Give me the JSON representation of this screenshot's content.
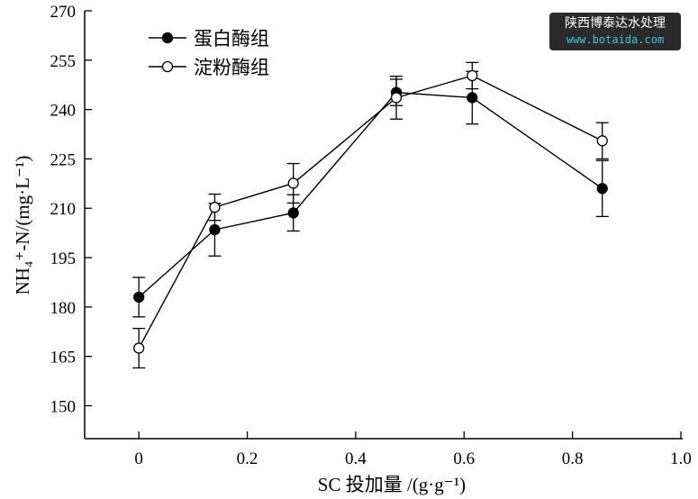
{
  "chart_data": {
    "type": "line",
    "xlabel": "SC 投加量 /(g·g⁻¹)",
    "ylabel": "NH₄⁺-N/(mg·L⁻¹)",
    "xlim": [
      -0.1,
      1.0
    ],
    "ylim": [
      140,
      270
    ],
    "xticks": [
      0,
      0.2,
      0.4,
      0.6,
      0.8,
      1.0
    ],
    "xtick_labels": [
      "0",
      "0.2",
      "0.4",
      "0.6",
      "0.8",
      "1.0"
    ],
    "yticks": [
      150,
      165,
      180,
      195,
      210,
      225,
      240,
      255,
      270
    ],
    "legend_position": "top-left",
    "series": [
      {
        "name": "蛋白酶组",
        "marker": "filled-circle",
        "x": [
          0,
          0.14,
          0.285,
          0.475,
          0.615,
          0.855
        ],
        "y": [
          183,
          203.5,
          208.6,
          245.2,
          243.6,
          216
        ],
        "err": [
          6,
          8,
          5.5,
          4,
          8,
          8.5
        ]
      },
      {
        "name": "淀粉酶组",
        "marker": "open-circle",
        "x": [
          0,
          0.14,
          0.285,
          0.475,
          0.615,
          0.855
        ],
        "y": [
          167.5,
          210.3,
          217.6,
          243.6,
          250.3,
          230.5
        ],
        "err": [
          6,
          4,
          6,
          6.5,
          4,
          5.5
        ]
      }
    ]
  },
  "watermark": {
    "line1": "陕西博泰达水处理",
    "line2": "www.botaida.com"
  }
}
